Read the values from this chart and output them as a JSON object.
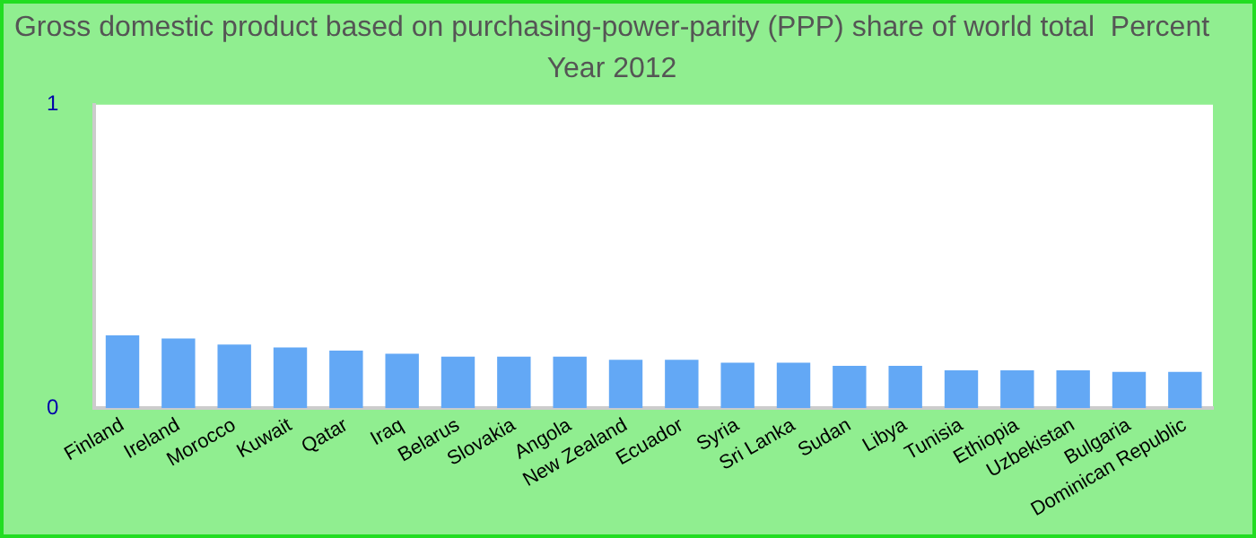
{
  "chart_data": {
    "type": "bar",
    "title": "Gross domestic product based on purchasing-power-parity (PPP) share of world total  Percent",
    "subtitle": "Year 2012",
    "categories": [
      "Finland",
      "Ireland",
      "Morocco",
      "Kuwait",
      "Qatar",
      "Iraq",
      "Belarus",
      "Slovakia",
      "Angola",
      "New Zealand",
      "Ecuador",
      "Syria",
      "Sri Lanka",
      "Sudan",
      "Libya",
      "Tunisia",
      "Ethiopia",
      "Uzbekistan",
      "Bulgaria",
      "Dominican Republic"
    ],
    "values": [
      0.24,
      0.23,
      0.21,
      0.2,
      0.19,
      0.18,
      0.17,
      0.17,
      0.17,
      0.16,
      0.16,
      0.15,
      0.15,
      0.14,
      0.14,
      0.125,
      0.125,
      0.125,
      0.12,
      0.12
    ],
    "color": "#63a8f5",
    "ylim": [
      0,
      1
    ],
    "yticks": [
      0,
      1
    ],
    "grid": false,
    "legend": false
  }
}
